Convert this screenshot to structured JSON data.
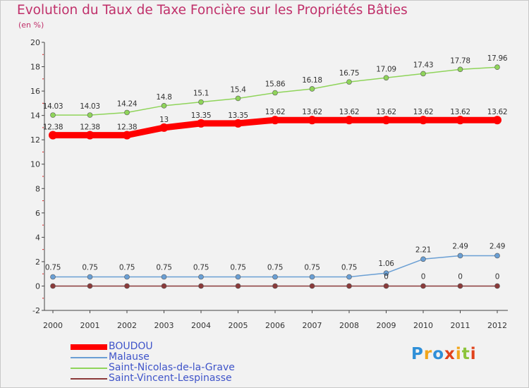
{
  "chart_data": {
    "type": "line",
    "title": "Evolution du Taux de Taxe Foncière sur les Propriétés Bâties",
    "subtitle": "(en %)",
    "xlabel": "",
    "ylabel": "",
    "ylim": [
      -2,
      20
    ],
    "yticks": [
      "-2",
      "0",
      "2",
      "4",
      "6",
      "8",
      "10",
      "12",
      "14",
      "16",
      "18",
      "20"
    ],
    "categories": [
      "2000",
      "2001",
      "2002",
      "2003",
      "2004",
      "2005",
      "2006",
      "2007",
      "2008",
      "2009",
      "2010",
      "2011",
      "2012"
    ],
    "series": [
      {
        "name": "BOUDOU",
        "color": "#ff0000",
        "values": [
          12.38,
          12.38,
          12.38,
          13,
          13.35,
          13.35,
          13.62,
          13.62,
          13.62,
          13.62,
          13.62,
          13.62,
          13.62
        ],
        "labels": [
          "12.38",
          "12.38",
          "12.38",
          "13",
          "13.35",
          "13.35",
          "13.62",
          "13.62",
          "13.62",
          "13.62",
          "13.62",
          "13.62",
          "13.62"
        ]
      },
      {
        "name": "Malause",
        "color": "#6a9fd4",
        "values": [
          0.75,
          0.75,
          0.75,
          0.75,
          0.75,
          0.75,
          0.75,
          0.75,
          0.75,
          1.06,
          2.21,
          2.49,
          2.49
        ],
        "labels": [
          "0.75",
          "0.75",
          "0.75",
          "0.75",
          "0.75",
          "0.75",
          "0.75",
          "0.75",
          "0.75",
          "1.06",
          "2.21",
          "2.49",
          "2.49"
        ]
      },
      {
        "name": "Saint-Nicolas-de-la-Grave",
        "color": "#8fd45a",
        "values": [
          14.03,
          14.03,
          14.24,
          14.8,
          15.1,
          15.4,
          15.86,
          16.18,
          16.75,
          17.09,
          17.43,
          17.78,
          17.96
        ],
        "labels": [
          "14.03",
          "14.03",
          "14.24",
          "14.8",
          "15.1",
          "15.4",
          "15.86",
          "16.18",
          "16.75",
          "17.09",
          "17.43",
          "17.78",
          "17.96"
        ]
      },
      {
        "name": "Saint-Vincent-Lespinasse",
        "color": "#8b3a3a",
        "values": [
          0,
          0,
          0,
          0,
          0,
          0,
          0,
          0,
          0,
          0,
          0,
          0,
          0
        ],
        "labels": [
          "",
          "",
          "",
          "",
          "",
          "",
          "",
          "",
          "",
          "0",
          "0",
          "0",
          "0"
        ]
      }
    ],
    "legend": [
      "BOUDOU",
      "Malause",
      "Saint-Nicolas-de-la-Grave",
      "Saint-Vincent-Lespinasse"
    ],
    "legend_position": "bottom-left",
    "grid": false
  },
  "logo": {
    "text": "Proxiti",
    "colors": [
      "#2f8fd8",
      "#f2a51a",
      "#2f8fd8",
      "#e0421b",
      "#f2a51a",
      "#8cc43b",
      "#e0421b"
    ]
  }
}
